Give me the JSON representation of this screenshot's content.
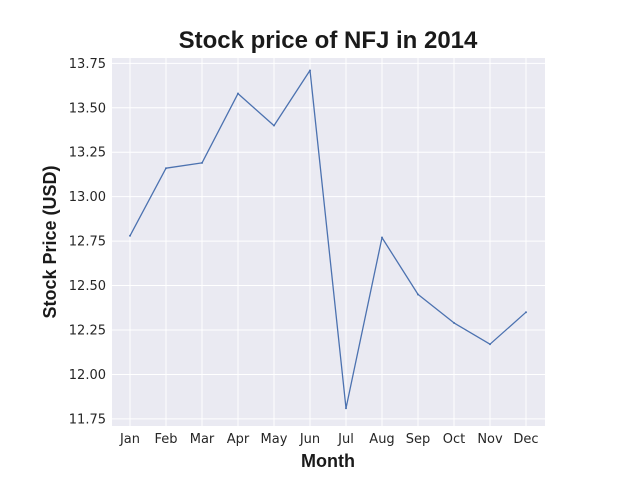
{
  "chart_data": {
    "type": "line",
    "title": "Stock price of NFJ in 2014",
    "xlabel": "Month",
    "ylabel": "Stock Price (USD)",
    "categories": [
      "Jan",
      "Feb",
      "Mar",
      "Apr",
      "May",
      "Jun",
      "Jul",
      "Aug",
      "Sep",
      "Oct",
      "Nov",
      "Dec"
    ],
    "series": [
      {
        "values": [
          12.78,
          13.16,
          13.19,
          13.58,
          13.4,
          13.71,
          11.81,
          12.77,
          12.45,
          12.29,
          12.17,
          12.35
        ],
        "color": "#4c72b0"
      }
    ],
    "yticks": [
      "11.75",
      "12.00",
      "12.25",
      "12.50",
      "12.75",
      "13.00",
      "13.25",
      "13.50",
      "13.75"
    ],
    "ylim": [
      11.71,
      13.78
    ],
    "grid": true,
    "background": "#eaeaf2",
    "gridColor": "#ffffff"
  }
}
